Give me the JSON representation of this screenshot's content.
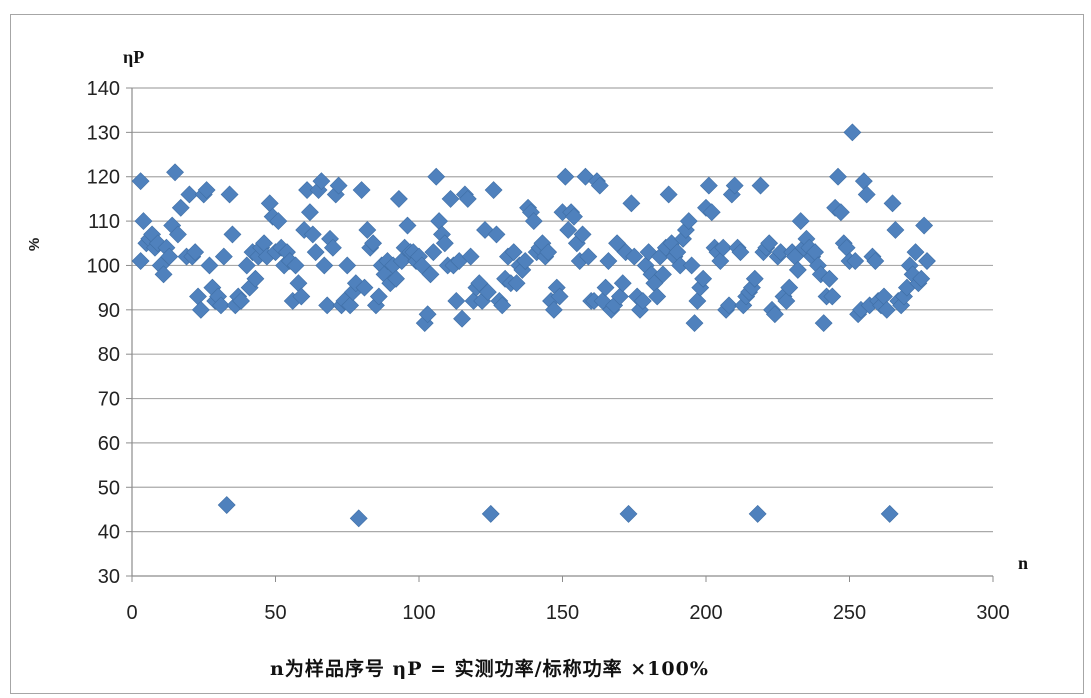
{
  "chart_data": {
    "type": "scatter",
    "y_title": "ηP",
    "xlabel": "n",
    "ylabel": "%",
    "caption": "n为样品序号   ηP = 实测功率/标称功率 ×100%",
    "xlim": [
      0,
      300
    ],
    "ylim": [
      30,
      140
    ],
    "xticks": [
      0,
      50,
      100,
      150,
      200,
      250,
      300
    ],
    "yticks": [
      30,
      40,
      50,
      60,
      70,
      80,
      90,
      100,
      110,
      120,
      130,
      140
    ],
    "grid": true,
    "marker_color": "#4f81bd",
    "points": [
      [
        3,
        119
      ],
      [
        3,
        101
      ],
      [
        4,
        110
      ],
      [
        5,
        105
      ],
      [
        6,
        106
      ],
      [
        7,
        107
      ],
      [
        8,
        104
      ],
      [
        9,
        105
      ],
      [
        10,
        100
      ],
      [
        11,
        98
      ],
      [
        12,
        104
      ],
      [
        13,
        102
      ],
      [
        14,
        109
      ],
      [
        15,
        121
      ],
      [
        16,
        107
      ],
      [
        17,
        113
      ],
      [
        19,
        102
      ],
      [
        20,
        116
      ],
      [
        21,
        102
      ],
      [
        22,
        103
      ],
      [
        23,
        93
      ],
      [
        24,
        90
      ],
      [
        25,
        116
      ],
      [
        26,
        117
      ],
      [
        27,
        100
      ],
      [
        28,
        95
      ],
      [
        29,
        92
      ],
      [
        30,
        93
      ],
      [
        31,
        91
      ],
      [
        32,
        102
      ],
      [
        33,
        46
      ],
      [
        34,
        116
      ],
      [
        35,
        107
      ],
      [
        36,
        91
      ],
      [
        37,
        93
      ],
      [
        38,
        92
      ],
      [
        40,
        100
      ],
      [
        41,
        95
      ],
      [
        42,
        103
      ],
      [
        43,
        97
      ],
      [
        44,
        102
      ],
      [
        45,
        104
      ],
      [
        46,
        105
      ],
      [
        47,
        102
      ],
      [
        48,
        114
      ],
      [
        49,
        111
      ],
      [
        50,
        103
      ],
      [
        51,
        110
      ],
      [
        52,
        104
      ],
      [
        53,
        100
      ],
      [
        54,
        103
      ],
      [
        55,
        101
      ],
      [
        56,
        92
      ],
      [
        57,
        100
      ],
      [
        58,
        96
      ],
      [
        59,
        93
      ],
      [
        60,
        108
      ],
      [
        61,
        117
      ],
      [
        62,
        112
      ],
      [
        63,
        107
      ],
      [
        64,
        103
      ],
      [
        65,
        117
      ],
      [
        66,
        119
      ],
      [
        67,
        100
      ],
      [
        68,
        91
      ],
      [
        69,
        106
      ],
      [
        70,
        104
      ],
      [
        71,
        116
      ],
      [
        72,
        118
      ],
      [
        73,
        91
      ],
      [
        74,
        92
      ],
      [
        75,
        100
      ],
      [
        76,
        91
      ],
      [
        77,
        94
      ],
      [
        78,
        96
      ],
      [
        79,
        43
      ],
      [
        80,
        117
      ],
      [
        81,
        95
      ],
      [
        82,
        108
      ],
      [
        83,
        104
      ],
      [
        84,
        105
      ],
      [
        85,
        91
      ],
      [
        86,
        93
      ],
      [
        87,
        100
      ],
      [
        88,
        98
      ],
      [
        89,
        101
      ],
      [
        90,
        96
      ],
      [
        91,
        100
      ],
      [
        92,
        97
      ],
      [
        93,
        115
      ],
      [
        94,
        101
      ],
      [
        95,
        104
      ],
      [
        96,
        109
      ],
      [
        97,
        103
      ],
      [
        98,
        103
      ],
      [
        99,
        101
      ],
      [
        100,
        102
      ],
      [
        101,
        100
      ],
      [
        102,
        87
      ],
      [
        103,
        89
      ],
      [
        104,
        98
      ],
      [
        105,
        103
      ],
      [
        106,
        120
      ],
      [
        107,
        110
      ],
      [
        108,
        107
      ],
      [
        109,
        105
      ],
      [
        110,
        100
      ],
      [
        111,
        115
      ],
      [
        112,
        100
      ],
      [
        113,
        92
      ],
      [
        114,
        101
      ],
      [
        115,
        88
      ],
      [
        116,
        116
      ],
      [
        117,
        115
      ],
      [
        118,
        102
      ],
      [
        119,
        92
      ],
      [
        120,
        95
      ],
      [
        121,
        96
      ],
      [
        122,
        92
      ],
      [
        123,
        108
      ],
      [
        124,
        94
      ],
      [
        125,
        44
      ],
      [
        126,
        117
      ],
      [
        127,
        107
      ],
      [
        128,
        92
      ],
      [
        129,
        91
      ],
      [
        130,
        97
      ],
      [
        131,
        102
      ],
      [
        132,
        96
      ],
      [
        133,
        103
      ],
      [
        134,
        96
      ],
      [
        135,
        100
      ],
      [
        136,
        99
      ],
      [
        137,
        101
      ],
      [
        138,
        113
      ],
      [
        139,
        112
      ],
      [
        140,
        110
      ],
      [
        141,
        103
      ],
      [
        142,
        104
      ],
      [
        143,
        105
      ],
      [
        144,
        102
      ],
      [
        145,
        103
      ],
      [
        146,
        92
      ],
      [
        147,
        90
      ],
      [
        148,
        95
      ],
      [
        149,
        93
      ],
      [
        150,
        112
      ],
      [
        151,
        120
      ],
      [
        152,
        108
      ],
      [
        153,
        112
      ],
      [
        154,
        111
      ],
      [
        155,
        105
      ],
      [
        156,
        101
      ],
      [
        157,
        107
      ],
      [
        158,
        120
      ],
      [
        159,
        102
      ],
      [
        160,
        92
      ],
      [
        161,
        92
      ],
      [
        162,
        119
      ],
      [
        163,
        118
      ],
      [
        164,
        92
      ],
      [
        165,
        95
      ],
      [
        166,
        101
      ],
      [
        167,
        90
      ],
      [
        168,
        91
      ],
      [
        169,
        105
      ],
      [
        170,
        93
      ],
      [
        171,
        96
      ],
      [
        172,
        103
      ],
      [
        173,
        44
      ],
      [
        174,
        114
      ],
      [
        175,
        102
      ],
      [
        176,
        93
      ],
      [
        177,
        90
      ],
      [
        178,
        92
      ],
      [
        179,
        100
      ],
      [
        180,
        103
      ],
      [
        181,
        98
      ],
      [
        182,
        96
      ],
      [
        183,
        93
      ],
      [
        184,
        102
      ],
      [
        185,
        98
      ],
      [
        186,
        104
      ],
      [
        187,
        116
      ],
      [
        188,
        105
      ],
      [
        189,
        102
      ],
      [
        190,
        103
      ],
      [
        191,
        100
      ],
      [
        192,
        106
      ],
      [
        193,
        108
      ],
      [
        194,
        110
      ],
      [
        195,
        100
      ],
      [
        196,
        87
      ],
      [
        197,
        92
      ],
      [
        198,
        95
      ],
      [
        199,
        97
      ],
      [
        200,
        113
      ],
      [
        201,
        118
      ],
      [
        202,
        112
      ],
      [
        203,
        104
      ],
      [
        204,
        103
      ],
      [
        205,
        101
      ],
      [
        206,
        104
      ],
      [
        207,
        90
      ],
      [
        208,
        91
      ],
      [
        209,
        116
      ],
      [
        210,
        118
      ],
      [
        211,
        104
      ],
      [
        212,
        103
      ],
      [
        213,
        91
      ],
      [
        214,
        93
      ],
      [
        215,
        94
      ],
      [
        216,
        95
      ],
      [
        217,
        97
      ],
      [
        218,
        44
      ],
      [
        219,
        118
      ],
      [
        220,
        103
      ],
      [
        221,
        104
      ],
      [
        222,
        105
      ],
      [
        223,
        90
      ],
      [
        224,
        89
      ],
      [
        225,
        102
      ],
      [
        226,
        103
      ],
      [
        227,
        93
      ],
      [
        228,
        92
      ],
      [
        229,
        95
      ],
      [
        230,
        103
      ],
      [
        231,
        102
      ],
      [
        232,
        99
      ],
      [
        233,
        110
      ],
      [
        234,
        104
      ],
      [
        235,
        106
      ],
      [
        236,
        104
      ],
      [
        237,
        102
      ],
      [
        238,
        103
      ],
      [
        239,
        100
      ],
      [
        240,
        98
      ],
      [
        241,
        87
      ],
      [
        242,
        93
      ],
      [
        243,
        97
      ],
      [
        244,
        93
      ],
      [
        245,
        113
      ],
      [
        246,
        120
      ],
      [
        247,
        112
      ],
      [
        248,
        105
      ],
      [
        249,
        104
      ],
      [
        250,
        101
      ],
      [
        251,
        130
      ],
      [
        252,
        101
      ],
      [
        253,
        89
      ],
      [
        254,
        90
      ],
      [
        255,
        119
      ],
      [
        256,
        116
      ],
      [
        257,
        91
      ],
      [
        258,
        102
      ],
      [
        259,
        101
      ],
      [
        260,
        92
      ],
      [
        261,
        91
      ],
      [
        262,
        93
      ],
      [
        263,
        90
      ],
      [
        264,
        44
      ],
      [
        265,
        114
      ],
      [
        266,
        108
      ],
      [
        267,
        92
      ],
      [
        268,
        91
      ],
      [
        269,
        93
      ],
      [
        270,
        95
      ],
      [
        271,
        100
      ],
      [
        272,
        98
      ],
      [
        273,
        103
      ],
      [
        274,
        96
      ],
      [
        275,
        97
      ],
      [
        276,
        109
      ],
      [
        277,
        101
      ]
    ]
  }
}
